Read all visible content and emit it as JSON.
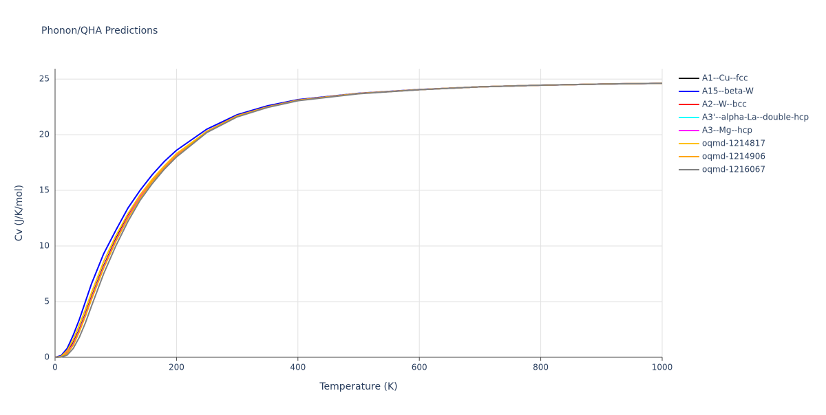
{
  "chart_data": {
    "type": "line",
    "title": "Phonon/QHA Predictions",
    "x_label": "Temperature (K)",
    "y_label": "Cv (J/K/mol)",
    "x": [
      0,
      10,
      20,
      30,
      40,
      50,
      60,
      80,
      100,
      120,
      140,
      160,
      180,
      200,
      250,
      300,
      350,
      400,
      500,
      600,
      700,
      800,
      900,
      1000
    ],
    "series": [
      {
        "name": "A1--Cu--fcc",
        "color": "#000000",
        "values": [
          0,
          0.06,
          0.45,
          1.3,
          2.5,
          3.9,
          5.4,
          8.2,
          10.6,
          12.7,
          14.5,
          15.9,
          17.1,
          18.2,
          20.3,
          21.7,
          22.5,
          23.1,
          23.7,
          24.05,
          24.3,
          24.45,
          24.55,
          24.62
        ]
      },
      {
        "name": "A15--beta-W",
        "color": "#0000ff",
        "values": [
          0,
          0.15,
          0.8,
          2.0,
          3.4,
          5.0,
          6.6,
          9.3,
          11.4,
          13.4,
          15.0,
          16.4,
          17.6,
          18.6,
          20.5,
          21.8,
          22.6,
          23.15,
          23.72,
          24.06,
          24.3,
          24.45,
          24.55,
          24.62
        ]
      },
      {
        "name": "A2--W--bcc",
        "color": "#ff0000",
        "values": [
          0,
          0.05,
          0.4,
          1.2,
          2.4,
          3.8,
          5.3,
          8.1,
          10.5,
          12.6,
          14.4,
          15.9,
          17.1,
          18.2,
          20.3,
          21.7,
          22.5,
          23.1,
          23.7,
          24.05,
          24.3,
          24.45,
          24.55,
          24.62
        ]
      },
      {
        "name": "A3'--alpha-La--double-hcp",
        "color": "#00ffff",
        "values": [
          0,
          0.05,
          0.4,
          1.2,
          2.4,
          3.8,
          5.3,
          8.1,
          10.5,
          12.6,
          14.4,
          15.9,
          17.1,
          18.2,
          20.3,
          21.7,
          22.5,
          23.1,
          23.7,
          24.05,
          24.3,
          24.45,
          24.55,
          24.62
        ]
      },
      {
        "name": "A3--Mg--hcp",
        "color": "#ff00ff",
        "values": [
          0,
          0.05,
          0.4,
          1.2,
          2.4,
          3.8,
          5.3,
          8.1,
          10.5,
          12.6,
          14.4,
          15.9,
          17.1,
          18.2,
          20.3,
          21.7,
          22.5,
          23.1,
          23.7,
          24.05,
          24.3,
          24.45,
          24.55,
          24.62
        ]
      },
      {
        "name": "oqmd-1214817",
        "color": "#ffc000",
        "values": [
          0,
          0.08,
          0.6,
          1.6,
          2.9,
          4.3,
          5.8,
          8.6,
          10.9,
          12.9,
          14.6,
          16.0,
          17.2,
          18.3,
          20.3,
          21.7,
          22.5,
          23.1,
          23.7,
          24.05,
          24.3,
          24.45,
          24.55,
          24.62
        ]
      },
      {
        "name": "oqmd-1214906",
        "color": "#ffa500",
        "values": [
          0,
          0.04,
          0.35,
          1.1,
          2.3,
          3.7,
          5.2,
          8.0,
          10.4,
          12.5,
          14.3,
          15.8,
          17.0,
          18.1,
          20.25,
          21.65,
          22.5,
          23.1,
          23.7,
          24.05,
          24.3,
          24.45,
          24.55,
          24.62
        ]
      },
      {
        "name": "oqmd-1216067",
        "color": "#808080",
        "values": [
          0,
          0.02,
          0.2,
          0.8,
          1.8,
          3.1,
          4.6,
          7.5,
          10.0,
          12.2,
          14.1,
          15.6,
          16.9,
          18.0,
          20.2,
          21.6,
          22.45,
          23.05,
          23.68,
          24.04,
          24.3,
          24.45,
          24.55,
          24.62
        ]
      }
    ],
    "xlim": [
      0,
      1000
    ],
    "xticks": [
      0,
      200,
      400,
      600,
      800,
      1000
    ],
    "ylim": [
      0,
      25.93
    ],
    "yticks": [
      0,
      5,
      10,
      15,
      20,
      25
    ],
    "grid": true
  }
}
